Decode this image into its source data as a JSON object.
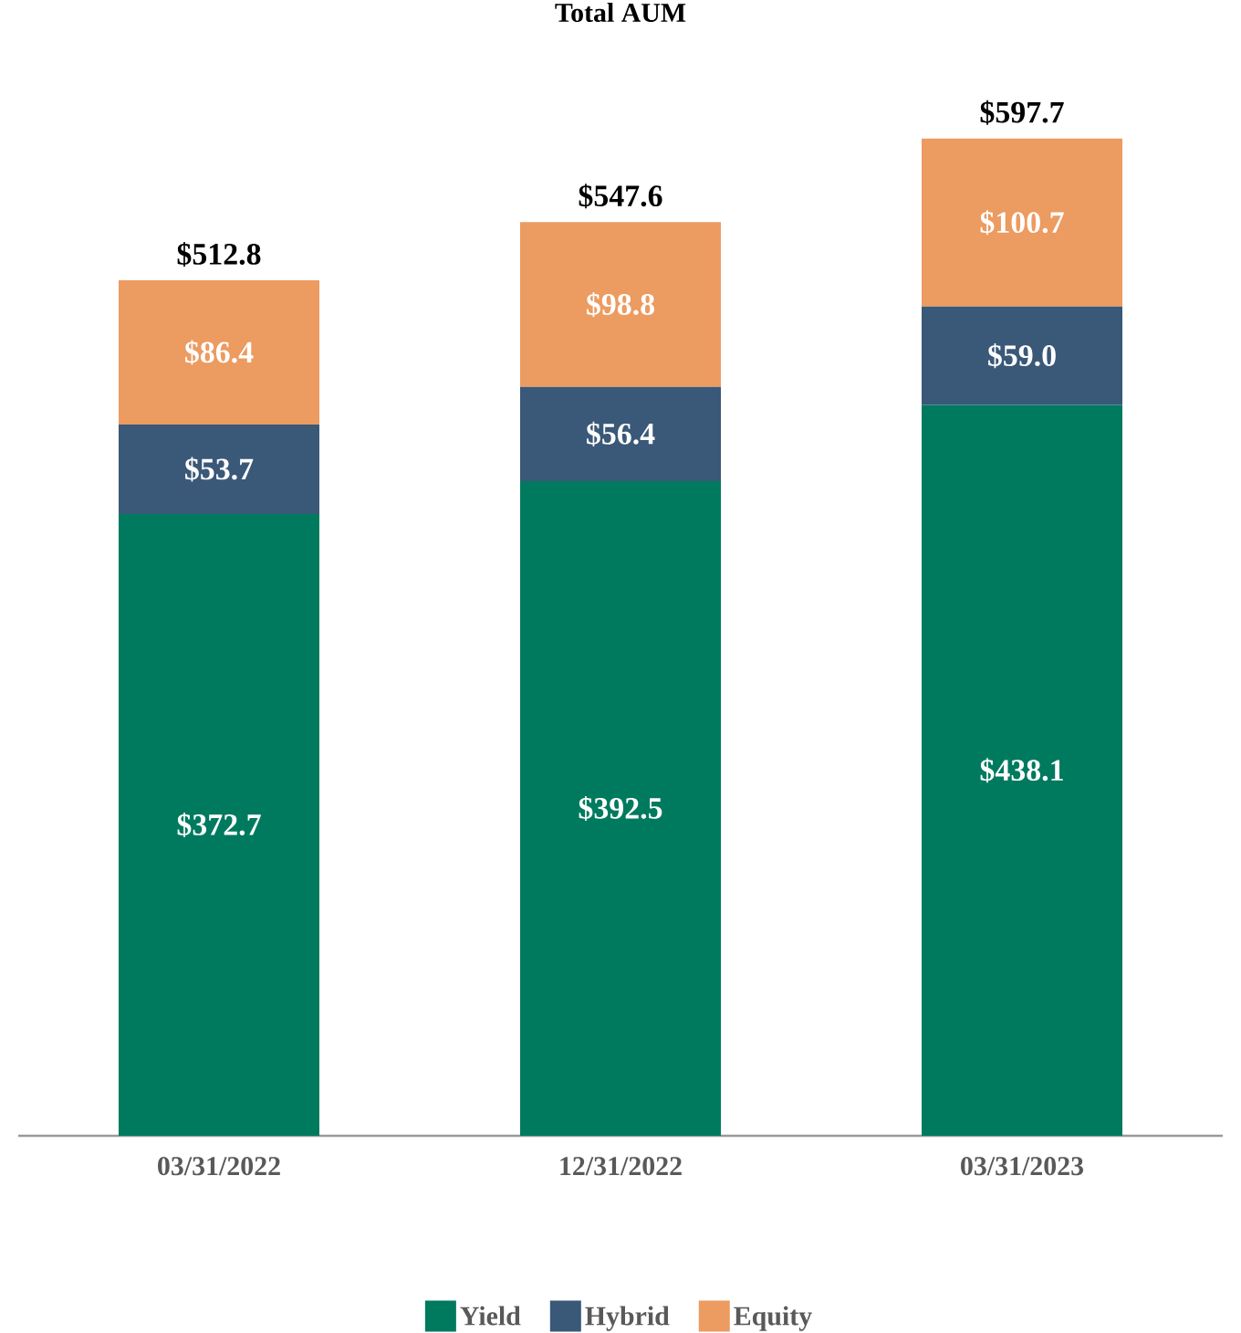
{
  "chart_data": {
    "type": "bar",
    "title": "Total AUM",
    "stacked": true,
    "categories": [
      "03/31/2022",
      "12/31/2022",
      "03/31/2023"
    ],
    "series": [
      {
        "name": "Yield",
        "color": "#007a5e",
        "values": [
          372.7,
          392.5,
          438.1
        ],
        "value_labels": [
          "$372.7",
          "$392.5",
          "$438.1"
        ]
      },
      {
        "name": "Hybrid",
        "color": "#3a5878",
        "values": [
          53.7,
          56.4,
          59.0
        ],
        "value_labels": [
          "$53.7",
          "$56.4",
          "$59.0"
        ]
      },
      {
        "name": "Equity",
        "color": "#ec9b61",
        "values": [
          86.4,
          98.8,
          100.7
        ],
        "value_labels": [
          "$86.4",
          "$98.8",
          "$100.7"
        ]
      }
    ],
    "totals": [
      "$512.8",
      "$547.6",
      "$597.7"
    ],
    "legend": "bottom"
  }
}
